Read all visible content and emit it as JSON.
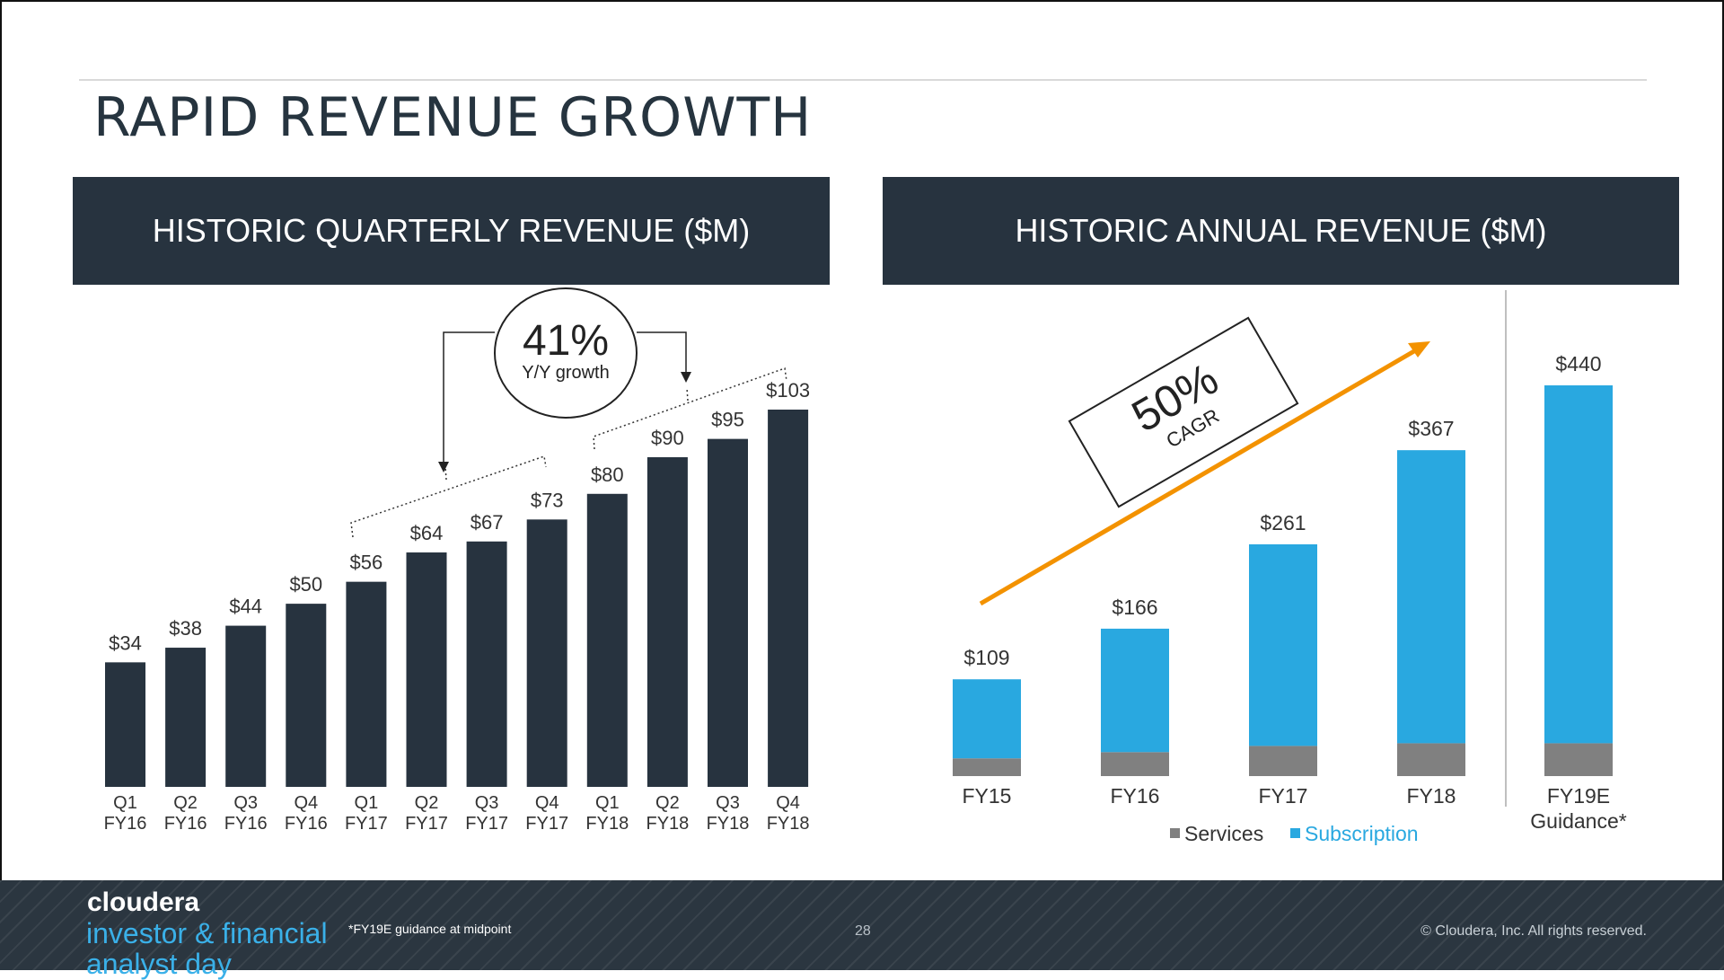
{
  "slide": {
    "title": "RAPID REVENUE GROWTH",
    "left_panel_title": "HISTORIC QUARTERLY REVENUE ($M)",
    "right_panel_title": "HISTORIC ANNUAL REVENUE ($M)"
  },
  "colors": {
    "dark_bar": "#27333f",
    "services": "#808080",
    "subscription": "#29a8e0",
    "arrow": "#f39200"
  },
  "annotations": {
    "yoy_value": "41%",
    "yoy_label": "Y/Y growth",
    "cagr_value": "50%",
    "cagr_label": "CAGR"
  },
  "chart_data": [
    {
      "type": "bar",
      "title": "HISTORIC QUARTERLY REVENUE ($M)",
      "categories": [
        [
          "Q1",
          "FY16"
        ],
        [
          "Q2",
          "FY16"
        ],
        [
          "Q3",
          "FY16"
        ],
        [
          "Q4",
          "FY16"
        ],
        [
          "Q1",
          "FY17"
        ],
        [
          "Q2",
          "FY17"
        ],
        [
          "Q3",
          "FY17"
        ],
        [
          "Q4",
          "FY17"
        ],
        [
          "Q1",
          "FY18"
        ],
        [
          "Q2",
          "FY18"
        ],
        [
          "Q3",
          "FY18"
        ],
        [
          "Q4",
          "FY18"
        ]
      ],
      "values": [
        34,
        38,
        44,
        50,
        56,
        64,
        67,
        73,
        80,
        90,
        95,
        103
      ],
      "labels": [
        "$34",
        "$38",
        "$44",
        "$50",
        "$56",
        "$64",
        "$67",
        "$73",
        "$80",
        "$90",
        "$95",
        "$103"
      ],
      "ylim": [
        0,
        103
      ],
      "grid": false
    },
    {
      "type": "bar",
      "stacked": true,
      "title": "HISTORIC ANNUAL REVENUE ($M)",
      "categories": [
        "FY15",
        "FY16",
        "FY17",
        "FY18",
        "FY19E Guidance*"
      ],
      "totals": [
        109,
        166,
        261,
        367,
        440
      ],
      "labels": [
        "$109",
        "$166",
        "$261",
        "$367",
        "$440"
      ],
      "series": [
        {
          "name": "Services",
          "values": [
            20,
            27,
            34,
            37,
            37
          ]
        },
        {
          "name": "Subscription",
          "values": [
            89,
            139,
            227,
            330,
            403
          ]
        }
      ],
      "ylim": [
        0,
        440
      ],
      "legend": "bottom",
      "grid": false
    }
  ],
  "footer": {
    "brand_name": "cloudera",
    "brand_tagline": "investor & financial analyst day",
    "footnote": "*FY19E guidance at midpoint",
    "page_number": "28",
    "copyright": "© Cloudera, Inc. All rights reserved."
  }
}
